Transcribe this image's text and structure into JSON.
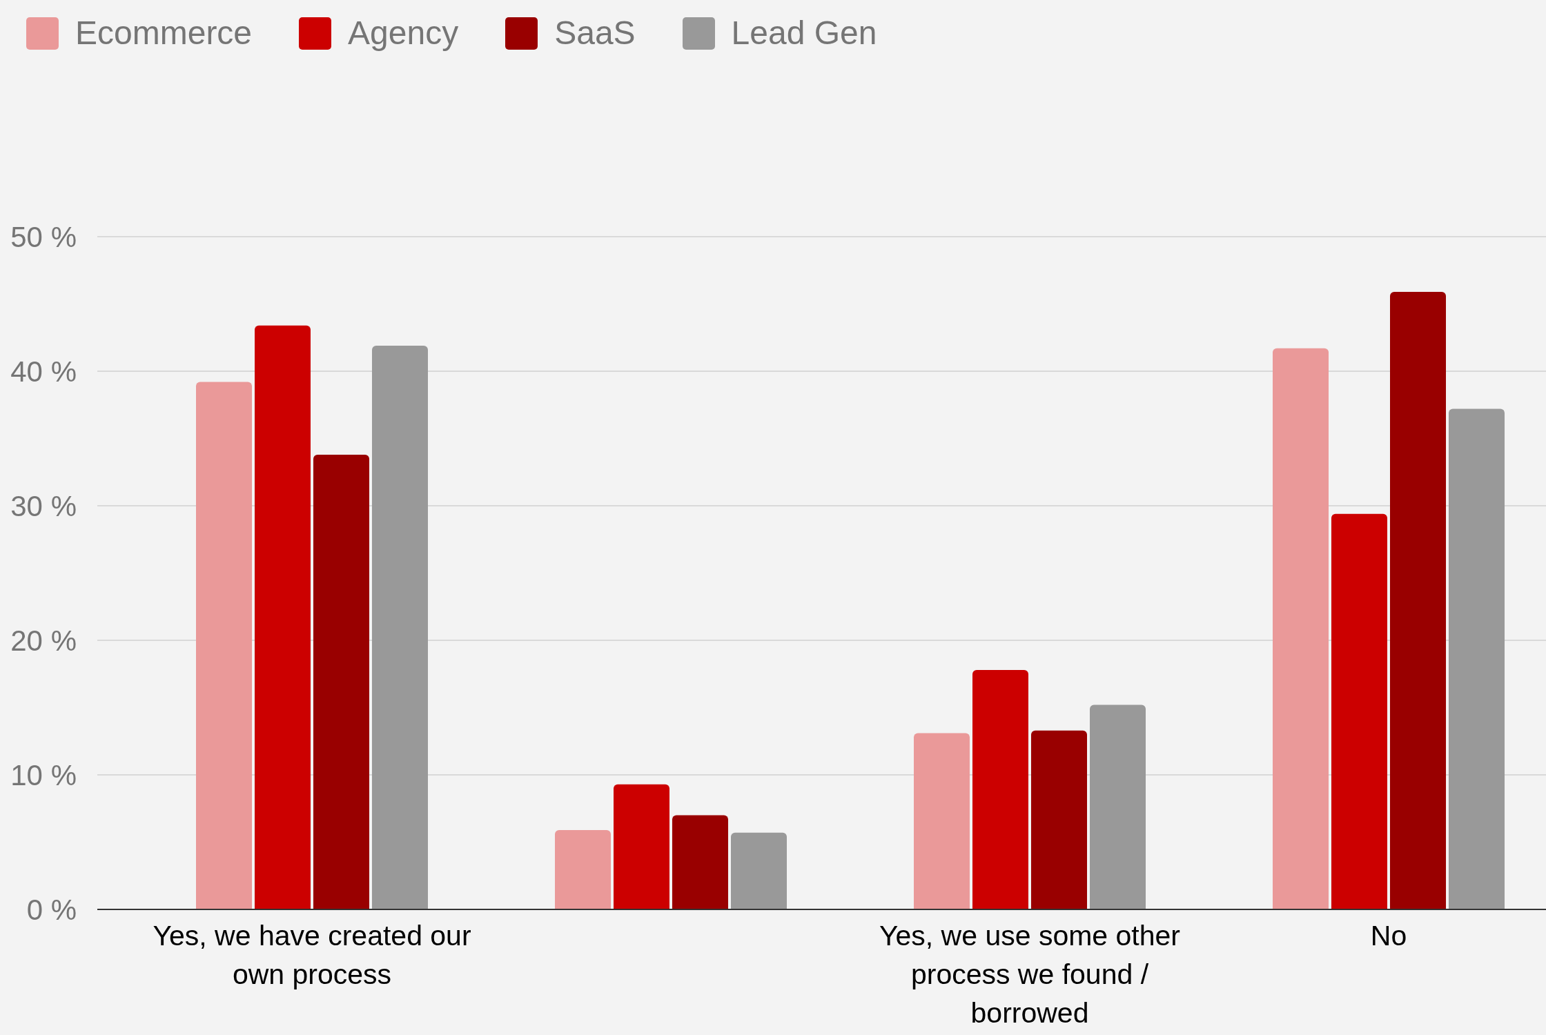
{
  "chart_data": {
    "type": "bar",
    "categories": [
      "Yes, we have created our own process",
      null,
      "Yes, we use some other process we found / borrowed",
      "No"
    ],
    "series": [
      {
        "name": "Ecommerce",
        "color": "#ea9999",
        "values": [
          39.2,
          5.9,
          13.1,
          41.7
        ]
      },
      {
        "name": "Agency",
        "color": "#cc0000",
        "values": [
          43.4,
          9.3,
          17.8,
          29.4
        ]
      },
      {
        "name": "SaaS",
        "color": "#990000",
        "values": [
          33.8,
          7.0,
          13.3,
          45.9
        ]
      },
      {
        "name": "Lead Gen",
        "color": "#999999",
        "values": [
          41.9,
          5.7,
          15.2,
          37.2
        ]
      }
    ],
    "ylim": [
      0,
      50
    ],
    "yticks": [
      {
        "value": 0,
        "label": "0 %"
      },
      {
        "value": 10,
        "label": "10 %"
      },
      {
        "value": 20,
        "label": "20 %"
      },
      {
        "value": 30,
        "label": "30 %"
      },
      {
        "value": 40,
        "label": "40 %"
      },
      {
        "value": 50,
        "label": "50 %"
      }
    ],
    "grid": "y",
    "legend": "top left"
  }
}
